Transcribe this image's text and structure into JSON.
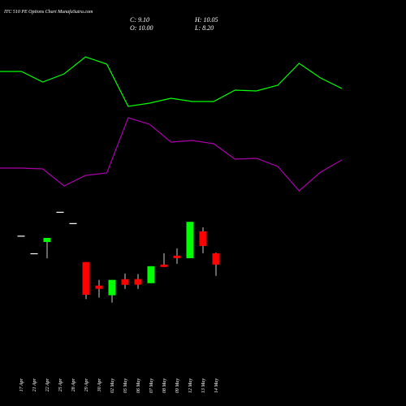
{
  "chart_data": [
    {
      "type": "candlestick",
      "title": "ITC 510 PE Options  Chart MunafaSutra.com",
      "ohlc_labels": {
        "close": "C: 9.10",
        "high": "H: 10.05",
        "open": "O: 10.00",
        "low": "L: 8.20"
      },
      "categories": [
        "17 Apr",
        "21 Apr",
        "22 Apr",
        "25 Apr",
        "28 Apr",
        "29 Apr",
        "30 Apr",
        "02 May",
        "05 May",
        "06 May",
        "07 May",
        "08 May",
        "09 May",
        "12 May",
        "13 May",
        "14 May"
      ],
      "open": [
        11.4,
        10.0,
        10.9,
        13.3,
        12.4,
        9.3,
        7.43,
        6.66,
        7.94,
        7.95,
        7.62,
        9.1,
        9.81,
        9.61,
        11.74,
        10.0
      ],
      "high": [
        11.4,
        10.0,
        11.22,
        13.3,
        12.4,
        9.3,
        7.88,
        7.88,
        8.39,
        8.35,
        8.97,
        10.0,
        10.39,
        12.5,
        12.06,
        10.05
      ],
      "low": [
        11.4,
        10.0,
        9.6,
        13.3,
        12.4,
        6.35,
        6.47,
        6.08,
        7.17,
        7.17,
        7.62,
        8.91,
        9.16,
        9.61,
        10.0,
        8.2
      ],
      "close": [
        11.4,
        10.0,
        11.22,
        13.3,
        12.4,
        6.7,
        7.17,
        7.88,
        7.49,
        7.5,
        8.97,
        8.91,
        9.61,
        12.5,
        10.58,
        9.1
      ],
      "up_color": "#00ff00",
      "down_color": "#ff0000",
      "ylim": [
        5.6,
        14.0
      ]
    },
    {
      "type": "line",
      "x": [
        0,
        1,
        2,
        3,
        4,
        5,
        6,
        7,
        8,
        9,
        10,
        11,
        12,
        13,
        14,
        15,
        16
      ],
      "xlim": [
        0,
        16
      ],
      "series": [
        {
          "color": "#00ff00",
          "values": [
            76,
            76,
            69.5,
            74.5,
            85,
            80.5,
            54.5,
            56.5,
            59.5,
            57.5,
            57.5,
            64.5,
            64,
            67.5,
            81,
            72,
            65.5
          ]
        },
        {
          "color": "#aa00aa",
          "values": [
            16.5,
            16.5,
            16,
            5.5,
            12,
            13.5,
            47.5,
            43.5,
            32.5,
            33.5,
            31.5,
            22,
            22.5,
            17.5,
            2.5,
            14,
            21.5
          ]
        }
      ],
      "ylim": [
        0,
        100
      ]
    }
  ]
}
